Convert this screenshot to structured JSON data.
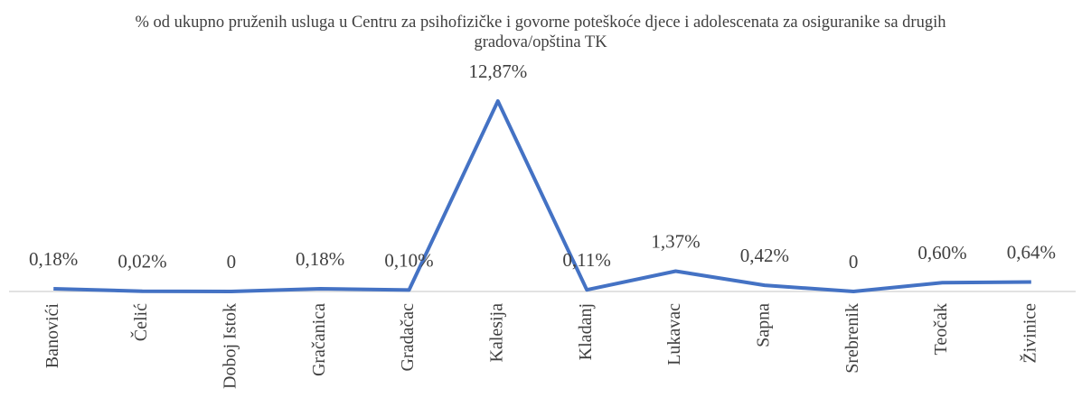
{
  "chart_data": {
    "type": "line",
    "title": "% od ukupno pruženih usluga u Centru za psihofizičke i govorne poteškoće djece i adolescenata za osiguranike sa drugih gradova/opština TK",
    "categories": [
      "Banovići",
      "Čelić",
      "Doboj Istok",
      "Gračanica",
      "Gradačac",
      "Kalesija",
      "Kladanj",
      "Lukavac",
      "Sapna",
      "Srebrenik",
      "Teočak",
      "Živinice"
    ],
    "values": [
      0.18,
      0.02,
      0,
      0.18,
      0.1,
      12.87,
      0.11,
      1.37,
      0.42,
      0,
      0.6,
      0.64
    ],
    "value_labels": [
      "0,18%",
      "0,02%",
      "0",
      "0,18%",
      "0,10%",
      "12,87%",
      "0,11%",
      "1,37%",
      "0,42%",
      "0",
      "0,60%",
      "0,64%"
    ],
    "color": "#4472c4"
  }
}
